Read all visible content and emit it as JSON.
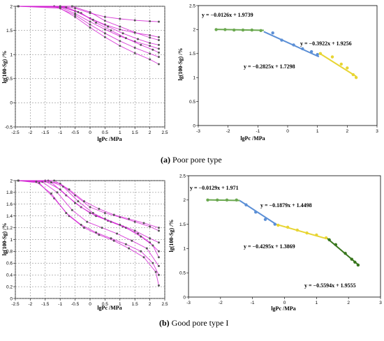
{
  "captions": {
    "a": {
      "letter": "(a)",
      "text": " Poor pore type"
    },
    "b": {
      "letter": "(b)",
      "text": " Good pore type I"
    }
  },
  "chart_data": [
    {
      "id": "a-left",
      "type": "line",
      "xlabel": "lgPc /MPa",
      "ylabel": "lg(100-Sg) /%",
      "xlim": [
        -2.5,
        2.5
      ],
      "ylim": [
        -0.5,
        2
      ],
      "xticks": [
        "-2.5",
        "-2",
        "-1.5",
        "-1",
        "-0.5",
        "0",
        "0.5",
        "1",
        "1.5",
        "2",
        "2.5"
      ],
      "yticks": [
        "-0.5",
        "0",
        "0.5",
        "1",
        "1.5",
        "2"
      ],
      "grid": true,
      "colors": {
        "line": "#d21fd2",
        "marker": "#555555"
      },
      "series": [
        {
          "values": [
            [
              -2.4,
              2
            ],
            [
              -1,
              2
            ],
            [
              -0.5,
              1.96
            ],
            [
              0,
              1.86
            ],
            [
              0.5,
              1.78
            ],
            [
              1,
              1.74
            ],
            [
              1.5,
              1.71
            ],
            [
              2,
              1.69
            ],
            [
              2.3,
              1.68
            ]
          ]
        },
        {
          "values": [
            [
              -2.4,
              2
            ],
            [
              -1,
              2
            ],
            [
              -0.5,
              1.9
            ],
            [
              0,
              1.75
            ],
            [
              0.5,
              1.62
            ],
            [
              1,
              1.52
            ],
            [
              1.5,
              1.45
            ],
            [
              2,
              1.4
            ],
            [
              2.3,
              1.36
            ]
          ]
        },
        {
          "values": [
            [
              -2.4,
              2
            ],
            [
              -1,
              1.98
            ],
            [
              -0.5,
              1.85
            ],
            [
              0,
              1.68
            ],
            [
              0.5,
              1.52
            ],
            [
              1,
              1.38
            ],
            [
              1.5,
              1.27
            ],
            [
              2,
              1.18
            ],
            [
              2.3,
              1.12
            ]
          ]
        },
        {
          "values": [
            [
              -2.4,
              2
            ],
            [
              -1.2,
              2
            ],
            [
              -0.5,
              1.82
            ],
            [
              0,
              1.62
            ],
            [
              0.5,
              1.44
            ],
            [
              1,
              1.28
            ],
            [
              1.5,
              1.14
            ],
            [
              2,
              1.02
            ],
            [
              2.3,
              0.95
            ]
          ]
        },
        {
          "values": [
            [
              -2.4,
              2
            ],
            [
              -1,
              1.96
            ],
            [
              -0.5,
              1.78
            ],
            [
              0,
              1.56
            ],
            [
              0.5,
              1.36
            ],
            [
              1,
              1.18
            ],
            [
              1.5,
              1.03
            ],
            [
              2,
              0.9
            ],
            [
              2.3,
              0.8
            ]
          ]
        },
        {
          "values": [
            [
              -2.4,
              2
            ],
            [
              -0.8,
              1.98
            ],
            [
              -0.3,
              1.86
            ],
            [
              0.2,
              1.66
            ],
            [
              0.7,
              1.5
            ],
            [
              1.2,
              1.34
            ],
            [
              1.7,
              1.2
            ],
            [
              2.1,
              1.1
            ],
            [
              2.3,
              1.04
            ]
          ]
        },
        {
          "values": [
            [
              -2.4,
              2
            ],
            [
              -0.6,
              2
            ],
            [
              0,
              1.88
            ],
            [
              0.5,
              1.7
            ],
            [
              1,
              1.58
            ],
            [
              1.5,
              1.46
            ],
            [
              2,
              1.35
            ],
            [
              2.3,
              1.3
            ]
          ]
        },
        {
          "values": [
            [
              -2.4,
              2
            ],
            [
              -1,
              1.99
            ],
            [
              -0.4,
              1.88
            ],
            [
              0.1,
              1.72
            ],
            [
              0.6,
              1.58
            ],
            [
              1.1,
              1.44
            ],
            [
              1.6,
              1.32
            ],
            [
              2,
              1.24
            ],
            [
              2.3,
              1.2
            ]
          ]
        }
      ]
    },
    {
      "id": "a-right",
      "type": "scatter",
      "xlabel": "lgPc /MPa",
      "ylabel": "lg(100-Sg) /%",
      "xlim": [
        -3,
        3
      ],
      "ylim": [
        0,
        2.5
      ],
      "xticks": [
        "-3",
        "-2",
        "-1",
        "0",
        "1",
        "2",
        "3"
      ],
      "yticks": [
        "0",
        "0.5",
        "1",
        "1.5",
        "2",
        "2.5"
      ],
      "grid": false,
      "series": [
        {
          "color": "#6aa84f",
          "points": [
            [
              -2.4,
              2.0
            ],
            [
              -2.1,
              2.0
            ],
            [
              -1.8,
              1.99
            ],
            [
              -1.5,
              1.99
            ],
            [
              -1.2,
              1.99
            ],
            [
              -0.9,
              1.98
            ]
          ]
        },
        {
          "color": "#5b8fd6",
          "points": [
            [
              -0.5,
              1.93
            ],
            [
              -0.2,
              1.78
            ],
            [
              0.2,
              1.68
            ],
            [
              0.5,
              1.6
            ],
            [
              0.8,
              1.54
            ],
            [
              1.0,
              1.48
            ]
          ]
        },
        {
          "color": "#e8d533",
          "points": [
            [
              1.1,
              1.5
            ],
            [
              1.5,
              1.43
            ],
            [
              1.8,
              1.28
            ],
            [
              2.0,
              1.2
            ],
            [
              2.2,
              1.06
            ],
            [
              2.3,
              1.0
            ]
          ]
        }
      ],
      "fits": [
        {
          "color": "#6aa84f",
          "x": [
            -2.4,
            -0.8
          ],
          "slope": -0.0126,
          "intercept": 1.9739
        },
        {
          "color": "#5b8fd6",
          "x": [
            -0.8,
            1.05
          ],
          "slope": -0.2825,
          "intercept": 1.7298
        },
        {
          "color": "#e8d533",
          "x": [
            1.05,
            2.3
          ],
          "slope": -0.3922,
          "intercept": 1.9256
        }
      ],
      "annotations": [
        "y = −0.0126x + 1.9739",
        "y = −0.2825x + 1.7298",
        "y = −0.3922x + 1.9256"
      ]
    },
    {
      "id": "b-left",
      "type": "line",
      "xlabel": "lgPc /MPa",
      "ylabel": "lg(100-Sg) /%",
      "xlim": [
        -2.5,
        2.5
      ],
      "ylim": [
        0,
        2
      ],
      "xticks": [
        "-2.5",
        "-2",
        "-1.5",
        "-1",
        "-0.5",
        "0",
        "0.5",
        "1",
        "1.5",
        "2",
        "2.5"
      ],
      "yticks": [
        "0",
        "0.2",
        "0.4",
        "0.6",
        "0.8",
        "1",
        "1.2",
        "1.4",
        "1.6",
        "1.8",
        "2"
      ],
      "grid": true,
      "colors": {
        "line": "#d21fd2",
        "marker": "#555555"
      },
      "series": [
        {
          "values": [
            [
              -2.4,
              2
            ],
            [
              -1.5,
              2
            ],
            [
              -1,
              1.95
            ],
            [
              -0.5,
              1.75
            ],
            [
              0,
              1.55
            ],
            [
              0.5,
              1.45
            ],
            [
              1,
              1.38
            ],
            [
              1.5,
              1.3
            ],
            [
              2,
              1.22
            ],
            [
              2.3,
              1.15
            ]
          ]
        },
        {
          "values": [
            [
              -2.4,
              2
            ],
            [
              -1.4,
              2
            ],
            [
              -0.9,
              1.9
            ],
            [
              -0.4,
              1.65
            ],
            [
              0.1,
              1.45
            ],
            [
              0.6,
              1.32
            ],
            [
              1.1,
              1.22
            ],
            [
              1.6,
              1.1
            ],
            [
              2,
              0.95
            ],
            [
              2.3,
              0.8
            ]
          ]
        },
        {
          "values": [
            [
              -2.4,
              2
            ],
            [
              -1.6,
              1.98
            ],
            [
              -1.1,
              1.8
            ],
            [
              -0.6,
              1.5
            ],
            [
              -0.1,
              1.3
            ],
            [
              0.4,
              1.2
            ],
            [
              0.9,
              1.1
            ],
            [
              1.4,
              0.98
            ],
            [
              1.9,
              0.85
            ],
            [
              2.3,
              0.55
            ]
          ]
        },
        {
          "values": [
            [
              -2.4,
              2
            ],
            [
              -1.3,
              1.97
            ],
            [
              -0.8,
              1.75
            ],
            [
              -0.3,
              1.55
            ],
            [
              0.2,
              1.4
            ],
            [
              0.7,
              1.3
            ],
            [
              1.2,
              1.2
            ],
            [
              1.7,
              1.05
            ],
            [
              2.1,
              0.9
            ],
            [
              2.3,
              0.7
            ]
          ]
        },
        {
          "values": [
            [
              -2.4,
              2
            ],
            [
              -1.5,
              1.99
            ],
            [
              -1,
              1.85
            ],
            [
              -0.5,
              1.62
            ],
            [
              0,
              1.45
            ],
            [
              0.5,
              1.35
            ],
            [
              1,
              1.25
            ],
            [
              1.5,
              1.15
            ],
            [
              2,
              1.02
            ],
            [
              2.3,
              0.95
            ]
          ]
        },
        {
          "values": [
            [
              -2.4,
              2
            ],
            [
              -1.7,
              1.96
            ],
            [
              -1.2,
              1.7
            ],
            [
              -0.7,
              1.4
            ],
            [
              -0.2,
              1.2
            ],
            [
              0.3,
              1.08
            ],
            [
              0.8,
              0.98
            ],
            [
              1.3,
              0.85
            ],
            [
              1.8,
              0.7
            ],
            [
              2.2,
              0.45
            ],
            [
              2.3,
              0.22
            ]
          ]
        },
        {
          "values": [
            [
              -2.4,
              2
            ],
            [
              -1.2,
              2
            ],
            [
              -0.7,
              1.85
            ],
            [
              -0.2,
              1.65
            ],
            [
              0.3,
              1.52
            ],
            [
              0.8,
              1.42
            ],
            [
              1.3,
              1.35
            ],
            [
              1.8,
              1.28
            ],
            [
              2.3,
              1.2
            ]
          ]
        },
        {
          "values": [
            [
              -2.4,
              2
            ],
            [
              -1.8,
              1.98
            ],
            [
              -1.3,
              1.78
            ],
            [
              -0.8,
              1.45
            ],
            [
              -0.3,
              1.25
            ],
            [
              0.2,
              1.12
            ],
            [
              0.7,
              1.02
            ],
            [
              1.2,
              0.92
            ],
            [
              1.7,
              0.8
            ],
            [
              2.1,
              0.6
            ],
            [
              2.3,
              0.4
            ]
          ]
        }
      ]
    },
    {
      "id": "b-right",
      "type": "scatter",
      "xlabel": "lgPc /MPa",
      "ylabel": "lg(100-Sg) /%",
      "xlim": [
        -3,
        3
      ],
      "ylim": [
        0,
        2.5
      ],
      "xticks": [
        "-3",
        "-2",
        "-1",
        "0",
        "1",
        "2",
        "3"
      ],
      "yticks": [
        "0",
        "0.5",
        "1",
        "1.5",
        "2",
        "2.5"
      ],
      "grid": false,
      "series": [
        {
          "color": "#6aa84f",
          "points": [
            [
              -2.4,
              2.0
            ],
            [
              -2.1,
              2.0
            ],
            [
              -1.8,
              2.0
            ],
            [
              -1.5,
              2.0
            ]
          ]
        },
        {
          "color": "#5b8fd6",
          "points": [
            [
              -1.2,
              1.9
            ],
            [
              -0.9,
              1.75
            ],
            [
              -0.6,
              1.6
            ],
            [
              -0.3,
              1.5
            ]
          ]
        },
        {
          "color": "#e8d533",
          "points": [
            [
              -0.2,
              1.48
            ],
            [
              0.1,
              1.44
            ],
            [
              0.4,
              1.38
            ],
            [
              0.7,
              1.32
            ],
            [
              1.0,
              1.28
            ],
            [
              1.3,
              1.22
            ]
          ]
        },
        {
          "color": "#38761d",
          "points": [
            [
              1.4,
              1.18
            ],
            [
              1.6,
              1.08
            ],
            [
              1.9,
              0.9
            ],
            [
              2.1,
              0.78
            ],
            [
              2.2,
              0.72
            ],
            [
              2.3,
              0.66
            ]
          ]
        }
      ],
      "fits": [
        {
          "color": "#6aa84f",
          "x": [
            -2.4,
            -1.4
          ],
          "slope": -0.0129,
          "intercept": 1.971
        },
        {
          "color": "#5b8fd6",
          "x": [
            -1.4,
            -0.25
          ],
          "slope": -0.4295,
          "intercept": 1.3869
        },
        {
          "color": "#e8d533",
          "x": [
            -0.25,
            1.3
          ],
          "slope": -0.1879,
          "intercept": 1.4498
        },
        {
          "color": "#38761d",
          "x": [
            1.3,
            2.3
          ],
          "slope": -0.5594,
          "intercept": 1.9555
        }
      ],
      "annotations": [
        "y = −0.0129x + 1.971",
        "y = −0.1879x + 1.4498",
        "y = −0.4295x + 1.3869",
        "y = −0.5594x + 1.9555"
      ]
    }
  ]
}
